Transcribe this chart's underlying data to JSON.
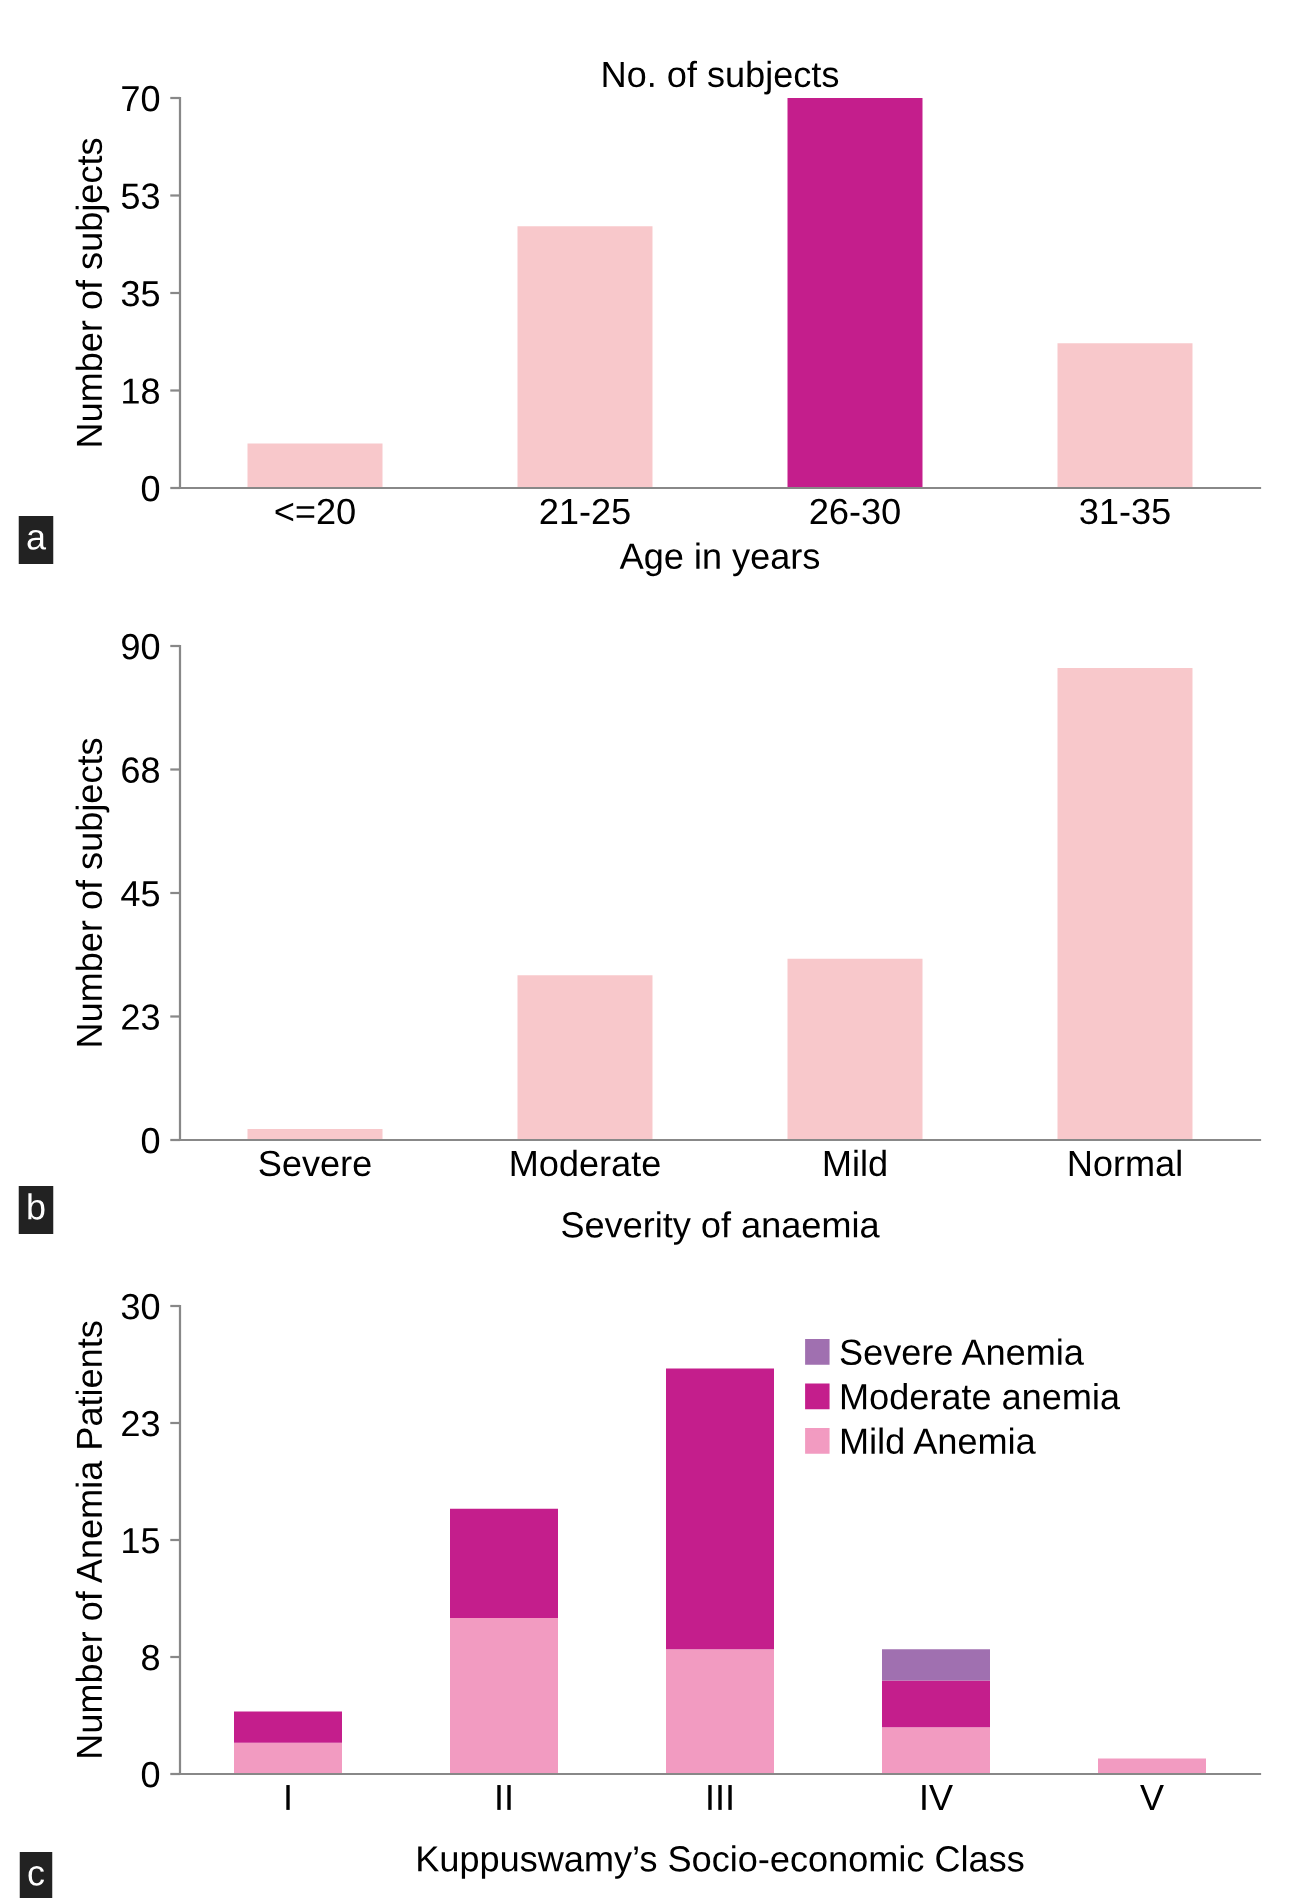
{
  "chart_data": [
    {
      "type": "bar",
      "title": "No. of subjects",
      "xlabel": "Age in years",
      "ylabel": "Number of subjects",
      "categories": [
        "<=20",
        "21-25",
        "26-30",
        "31-35"
      ],
      "values": [
        8,
        47,
        70,
        26
      ],
      "colors": [
        "#f8c8cb",
        "#f8c8cb",
        "#c41e8c",
        "#f8c8cb"
      ],
      "ylim": [
        0,
        70
      ],
      "yticks": [
        0,
        {
          "value": 17.5,
          "label": "18"
        },
        35,
        {
          "value": 52.5,
          "label": "53"
        },
        70
      ],
      "grid": false,
      "legend": false,
      "annotations": [
        "a"
      ]
    },
    {
      "type": "bar",
      "xlabel": "Severity of anaemia",
      "ylabel": "Number of subjects",
      "categories": [
        "Severe",
        "Moderate",
        "Mild",
        "Normal"
      ],
      "values": [
        2,
        30,
        33,
        86
      ],
      "color": "#f8c8cb",
      "ylim": [
        0,
        90
      ],
      "yticks": [
        0,
        {
          "value": 22.5,
          "label": "23"
        },
        45,
        {
          "value": 67.5,
          "label": "68"
        },
        90
      ],
      "grid": false,
      "legend": false,
      "annotations": [
        "b"
      ]
    },
    {
      "type": "bar",
      "stacked": true,
      "xlabel": "Kuppuswamy’s Socio-economic Class",
      "ylabel": "Number of Anemia Patients",
      "categories": [
        "I",
        "II",
        "III",
        "IV",
        "V"
      ],
      "series": [
        {
          "name": "Mild Anemia",
          "color": "#f29bc1",
          "values": [
            2,
            10,
            8,
            3,
            1
          ]
        },
        {
          "name": "Moderate anemia",
          "color": "#c41e8c",
          "values": [
            2,
            7,
            18,
            3,
            0
          ]
        },
        {
          "name": "Severe Anemia",
          "color": "#a070b0",
          "values": [
            0,
            0,
            0,
            2,
            0
          ]
        }
      ],
      "ylim": [
        0,
        30
      ],
      "yticks": [
        0,
        {
          "value": 7.5,
          "label": "8"
        },
        15,
        {
          "value": 22.5,
          "label": "23"
        },
        30
      ],
      "grid": false,
      "legend": "top right",
      "annotations": [
        "c"
      ]
    }
  ]
}
